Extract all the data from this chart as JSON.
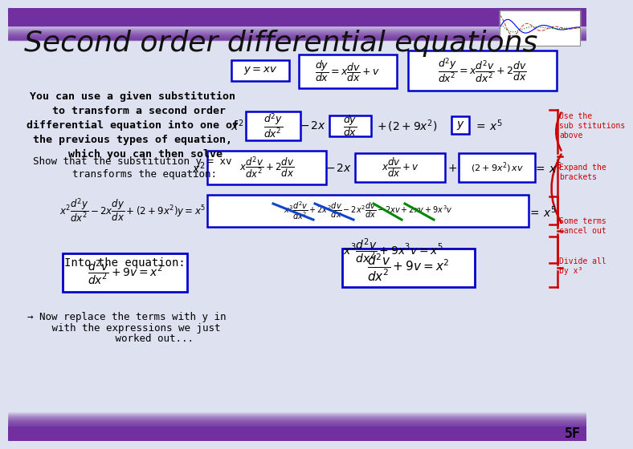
{
  "title": "Second order differential equations",
  "title_fontsize": 26,
  "title_color": "#111111",
  "bg_color": "#dde1f0",
  "top_bar_color": "#7030a0",
  "bottom_bar_color": "#7030a0",
  "slide_number": "5F",
  "left_text_lines": [
    "You can use a given substitution",
    "  to transform a second order",
    "differential equation into one of",
    "the previous types of equation,",
    "    which you can then solve"
  ],
  "show_text_line1": "Show that the substitution y = xv",
  "show_text_line2": "    transforms the equation:",
  "into_text": "Into the equation:",
  "arrow_text1": "→ Now replace the terms with y in",
  "arrow_text2": "   with the expressions we just",
  "arrow_text3": "         worked out...",
  "red_ann1": "Use the\nsub stitutions\nabove",
  "red_ann2": "Expand the\nbrackets",
  "red_ann3": "Some terms\ncancel out",
  "red_ann4": "Divide all\nby x³",
  "box_color": "#0000cc",
  "ann_color": "#cc0000",
  "strike_blue": "#1144cc",
  "strike_green": "#008800"
}
